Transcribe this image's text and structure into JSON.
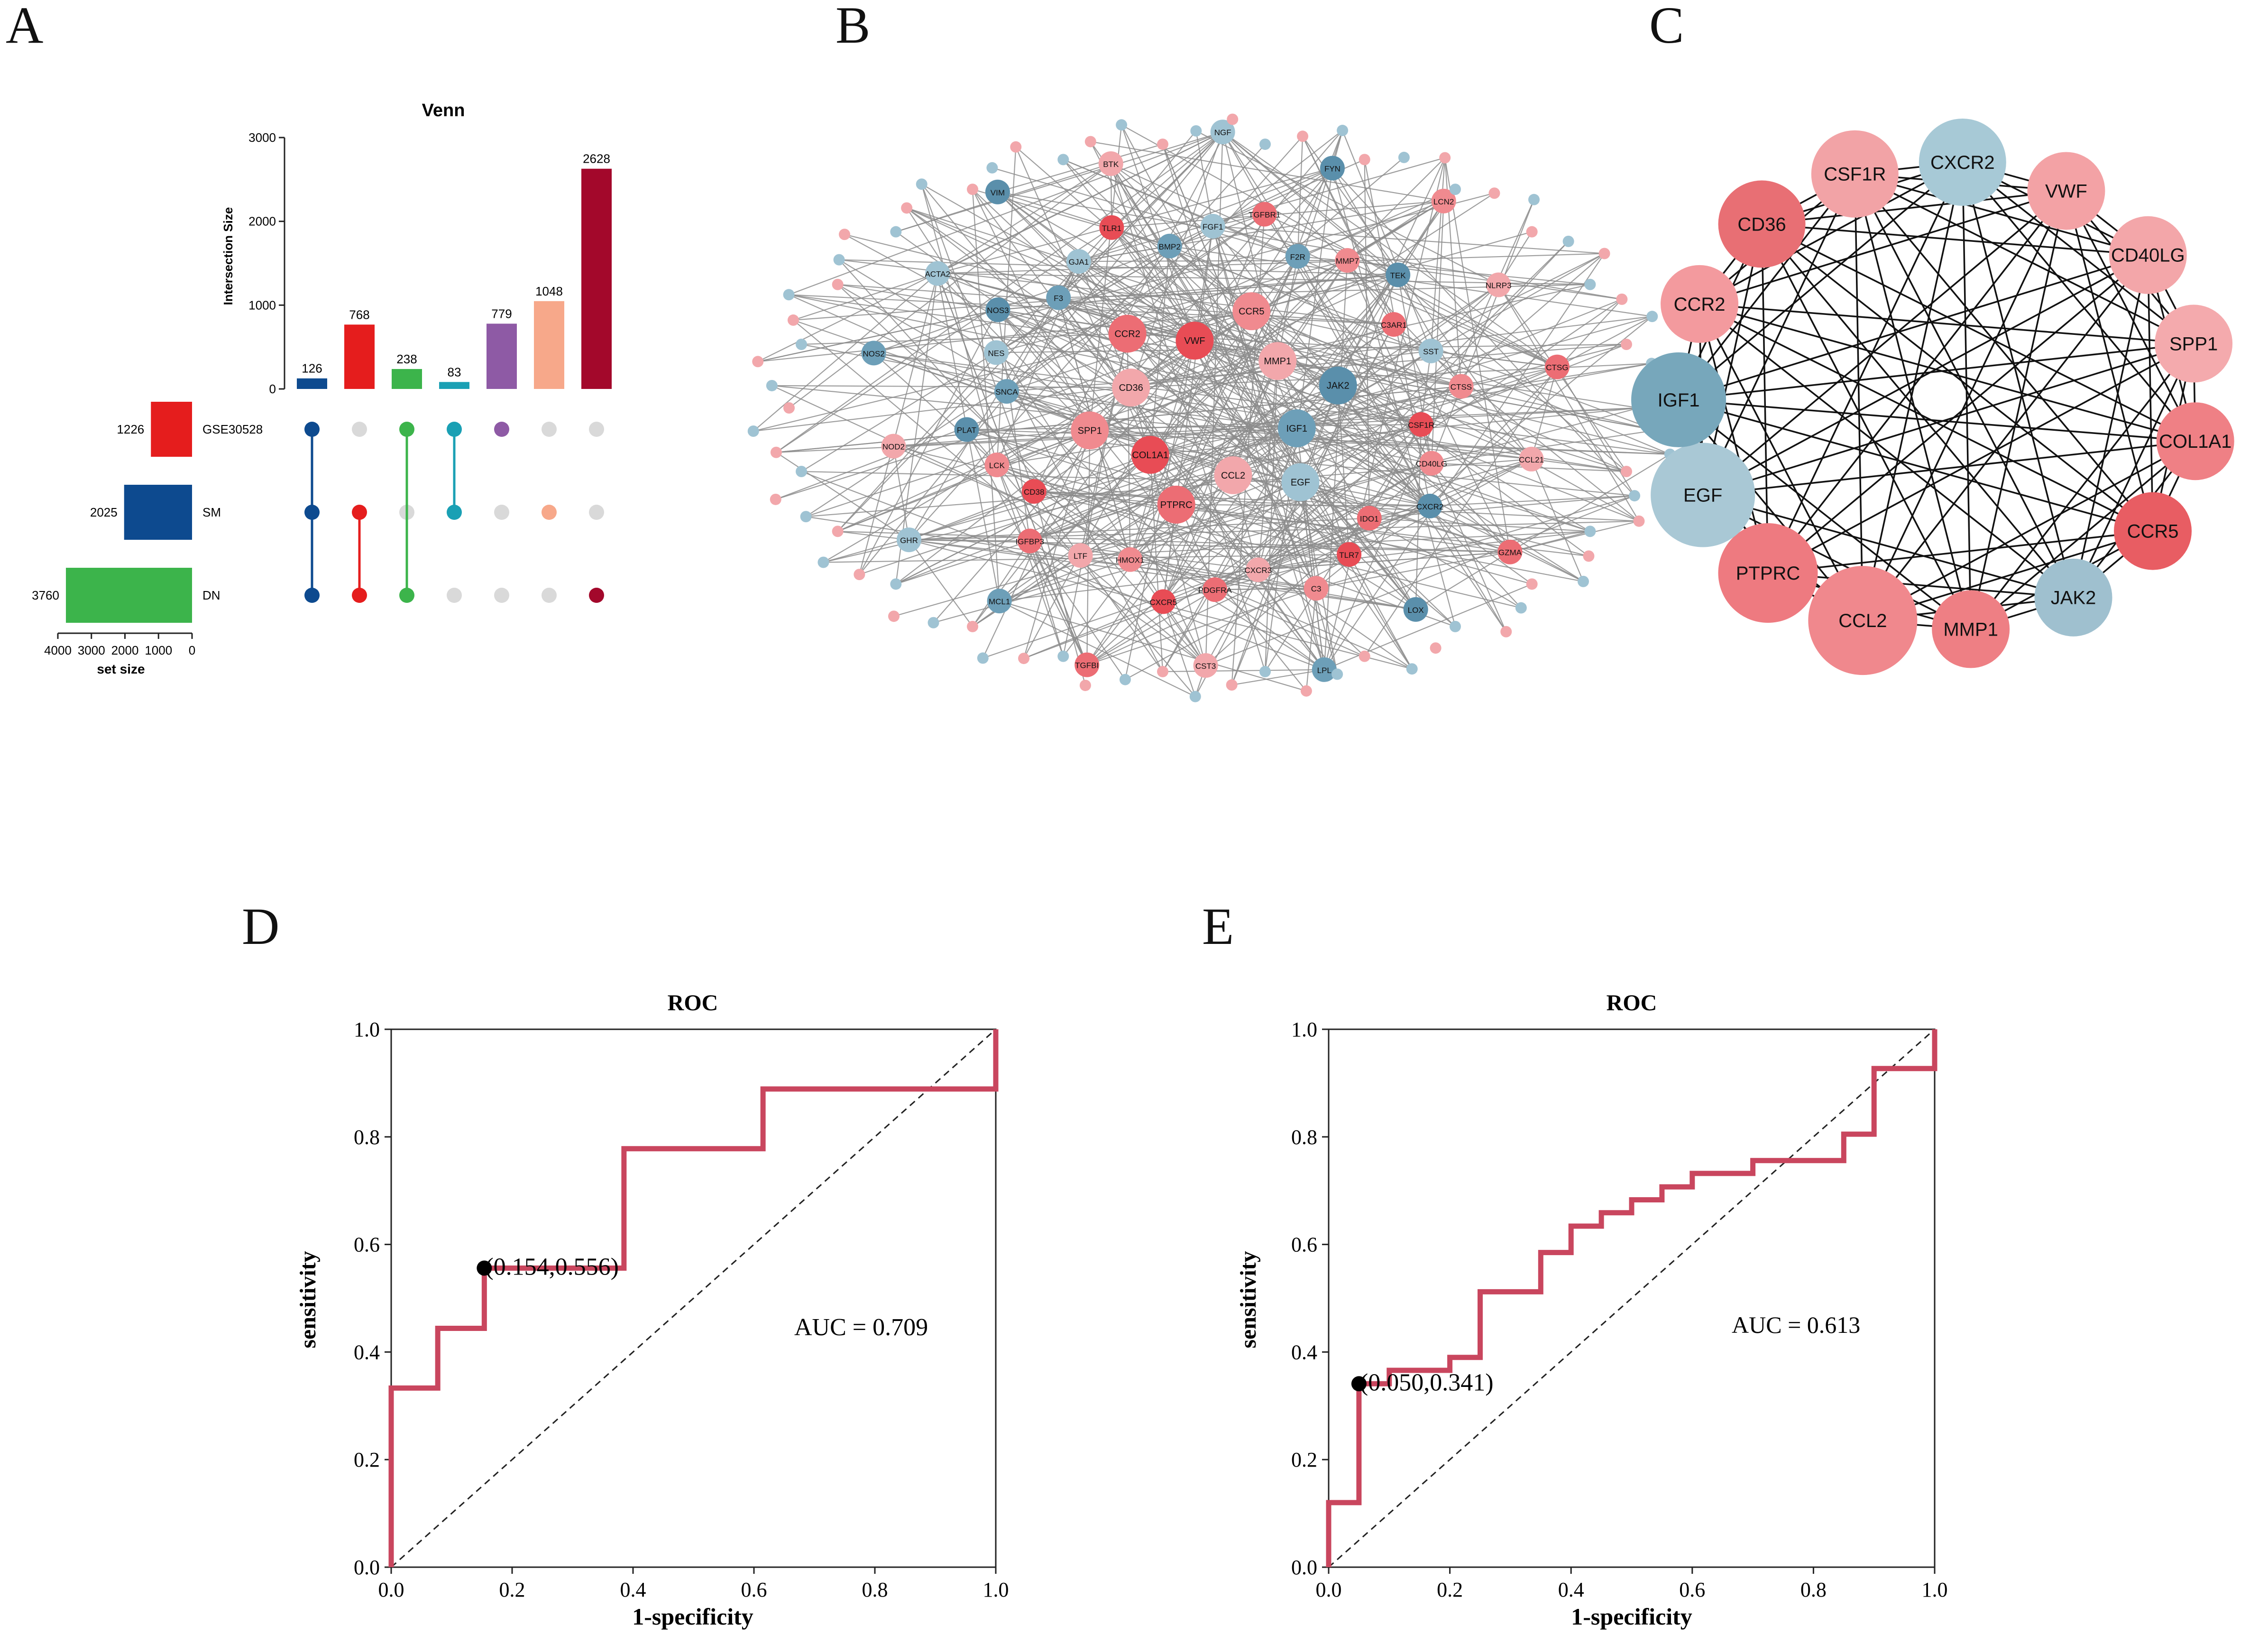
{
  "panels": {
    "a": {
      "letter": "A"
    },
    "b": {
      "letter": "B"
    },
    "c": {
      "letter": "C"
    },
    "d": {
      "letter": "D"
    },
    "e": {
      "letter": "E"
    }
  },
  "chart_data": [
    {
      "panel": "A",
      "type": "upset",
      "title": "Venn",
      "ylabel": "Intersection Size",
      "ylim": [
        0,
        3000
      ],
      "yticks": [
        "0",
        "1000",
        "2000",
        "3000"
      ],
      "intersections": [
        {
          "value": 126,
          "label": "126",
          "color": "#0d4a8f",
          "sets": [
            "GSE30528",
            "SM",
            "DN"
          ]
        },
        {
          "value": 768,
          "label": "768",
          "color": "#e51d1d",
          "sets": [
            "SM",
            "DN"
          ]
        },
        {
          "value": 238,
          "label": "238",
          "color": "#3cb44b",
          "sets": [
            "GSE30528",
            "DN"
          ]
        },
        {
          "value": 83,
          "label": "83",
          "color": "#1aa0b4",
          "sets": [
            "GSE30528",
            "SM"
          ]
        },
        {
          "value": 779,
          "label": "779",
          "color": "#8e5aa5",
          "sets": [
            "GSE30528"
          ]
        },
        {
          "value": 1048,
          "label": "1048",
          "color": "#f7a88a",
          "sets": [
            "SM"
          ]
        },
        {
          "value": 2628,
          "label": "2628",
          "color": "#a3082b",
          "sets": [
            "DN"
          ]
        }
      ],
      "sets": [
        {
          "name": "GSE30528",
          "size": 1226,
          "label": "1226",
          "color": "#e51d1d"
        },
        {
          "name": "SM",
          "size": 2025,
          "label": "2025",
          "color": "#0d4a8f"
        },
        {
          "name": "DN",
          "size": 3760,
          "label": "3760",
          "color": "#3cb44b"
        }
      ],
      "setsize_xlabel": "set size",
      "setsize_ticks": [
        "4000",
        "3000",
        "2000",
        "1000",
        "0"
      ],
      "setsize_max": 4000
    },
    {
      "panel": "B",
      "type": "network",
      "nodes": [
        "IGF1",
        "EGF",
        "CCL2",
        "PTPRC",
        "COL1A1",
        "SPP1",
        "CD36",
        "CCR2",
        "VWF",
        "CCR5",
        "MMP1",
        "JAK2",
        "CSF1R",
        "CD40LG",
        "CXCR2",
        "IDO1",
        "TLR7",
        "C3",
        "CXCR3",
        "PDGFRA",
        "CXCR5",
        "HMOX1",
        "LTF",
        "IGFBP3",
        "CD38",
        "LCK",
        "PLAT",
        "SNCA",
        "NES",
        "NOS3",
        "F3",
        "GJA1",
        "TLR1",
        "BMP2",
        "FGF1",
        "TGFBR1",
        "F2R",
        "MMP7",
        "TEK",
        "C3AR1",
        "SST",
        "CTSS",
        "CCL21",
        "GZMA",
        "LOX",
        "LPL",
        "CST3",
        "TGFBI",
        "MCL1",
        "GHR",
        "NOD2",
        "NOS2",
        "ACTA2",
        "VIM",
        "BTK",
        "NGF",
        "FYN",
        "LCN2",
        "NLRP3",
        "CTSG"
      ],
      "edge_color": "#8c8c8c"
    },
    {
      "panel": "C",
      "type": "network",
      "nodes": [
        {
          "name": "CSF1R",
          "color": "#f2a3a6"
        },
        {
          "name": "CXCR2",
          "color": "#a7c9d6"
        },
        {
          "name": "VWF",
          "color": "#f3a2a5"
        },
        {
          "name": "CD40LG",
          "color": "#f3a6a9"
        },
        {
          "name": "SPP1",
          "color": "#f4aaad"
        },
        {
          "name": "COL1A1",
          "color": "#ef8085"
        },
        {
          "name": "CCR5",
          "color": "#e85d63"
        },
        {
          "name": "JAK2",
          "color": "#9fc0cf"
        },
        {
          "name": "MMP1",
          "color": "#ee7f84"
        },
        {
          "name": "CCL2",
          "color": "#f0888d"
        },
        {
          "name": "PTPRC",
          "color": "#ee7a80"
        },
        {
          "name": "EGF",
          "color": "#a9c8d5"
        },
        {
          "name": "IGF1",
          "color": "#77a7bb"
        },
        {
          "name": "CCR2",
          "color": "#f39a9e"
        },
        {
          "name": "CD36",
          "color": "#e86f74"
        }
      ],
      "edge_color": "#111111"
    },
    {
      "panel": "D",
      "type": "line",
      "title": "ROC",
      "xlabel": "1-specificity",
      "ylabel": "sensitivity",
      "xlim": [
        0,
        1
      ],
      "ylim": [
        0,
        1
      ],
      "ticks": [
        "0.0",
        "0.2",
        "0.4",
        "0.6",
        "0.8",
        "1.0"
      ],
      "x": [
        0,
        0,
        0.077,
        0.077,
        0.154,
        0.154,
        0.385,
        0.385,
        0.615,
        0.615,
        1.0,
        1.0
      ],
      "y": [
        0,
        0.333,
        0.333,
        0.444,
        0.444,
        0.556,
        0.556,
        0.778,
        0.778,
        0.889,
        0.889,
        1.0
      ],
      "cutoff": {
        "x": 0.154,
        "y": 0.556,
        "label": "(0.154,0.556)"
      },
      "auc_label": "AUC = 0.709",
      "line_color": "#c9465e"
    },
    {
      "panel": "E",
      "type": "line",
      "title": "ROC",
      "xlabel": "1-specificity",
      "ylabel": "sensitivity",
      "xlim": [
        0,
        1
      ],
      "ylim": [
        0,
        1
      ],
      "ticks": [
        "0.0",
        "0.2",
        "0.4",
        "0.6",
        "0.8",
        "1.0"
      ],
      "x": [
        0,
        0,
        0.05,
        0.05,
        0.1,
        0.1,
        0.2,
        0.2,
        0.25,
        0.25,
        0.35,
        0.35,
        0.4,
        0.4,
        0.45,
        0.45,
        0.5,
        0.5,
        0.55,
        0.55,
        0.6,
        0.6,
        0.7,
        0.7,
        0.85,
        0.85,
        0.9,
        0.9,
        1.0,
        1.0
      ],
      "y": [
        0,
        0.12,
        0.12,
        0.341,
        0.341,
        0.366,
        0.366,
        0.39,
        0.39,
        0.512,
        0.512,
        0.585,
        0.585,
        0.634,
        0.634,
        0.659,
        0.659,
        0.683,
        0.683,
        0.707,
        0.707,
        0.732,
        0.732,
        0.756,
        0.756,
        0.805,
        0.805,
        0.927,
        0.927,
        1.0
      ],
      "cutoff": {
        "x": 0.05,
        "y": 0.341,
        "label": "(0.050,0.341)"
      },
      "auc_label": "AUC = 0.613",
      "line_color": "#c9465e"
    }
  ]
}
